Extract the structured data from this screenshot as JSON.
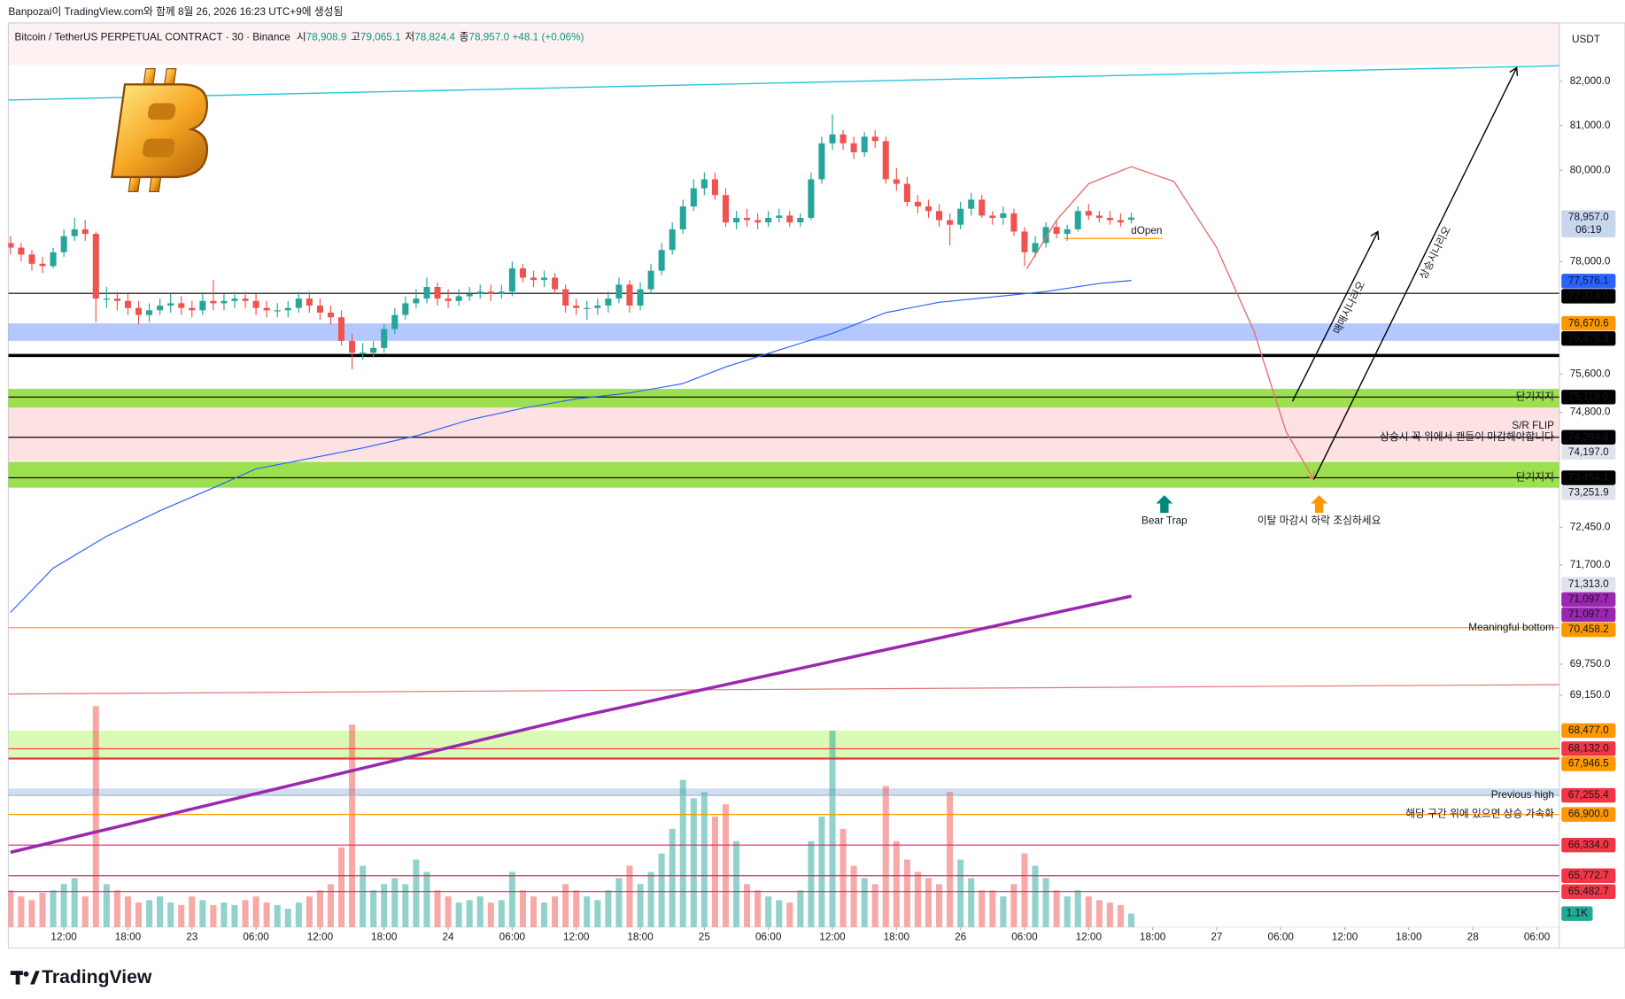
{
  "header": {
    "credit": "Banpozai이 TradingView.com와 함께 8월 26, 2026 16:23 UTC+9에 생성됨",
    "symbol": "Bitcoin / TetherUS PERPETUAL CONTRACT · 30 · Binance",
    "ohlc": [
      {
        "label": "시",
        "value": "78,908.9"
      },
      {
        "label": "고",
        "value": "79,065.1"
      },
      {
        "label": "저",
        "value": "78,824.4"
      },
      {
        "label": "종",
        "value": "78,957.0"
      }
    ],
    "change": "+48.1 (+0.06%)"
  },
  "footer": {
    "brand": "TradingView"
  },
  "chart_data": {
    "type": "candlestick",
    "log_scale": true,
    "currency": "USDT",
    "xlim": [
      6.8,
      152.1
    ],
    "ylim": [
      64840,
      83340
    ],
    "volume_lim": [
      0,
      18500
    ],
    "up_color": "#26a69a",
    "down_color": "#ef5350",
    "volume_up_color": "rgba(38,166,154,0.5)",
    "volume_down_color": "rgba(239,83,80,0.5)",
    "xticks": [
      {
        "value": 12,
        "label": "12:00"
      },
      {
        "value": 18,
        "label": "18:00"
      },
      {
        "value": 24,
        "label": "23"
      },
      {
        "value": 30,
        "label": "06:00"
      },
      {
        "value": 36,
        "label": "12:00"
      },
      {
        "value": 42,
        "label": "18:00"
      },
      {
        "value": 48,
        "label": "24"
      },
      {
        "value": 54,
        "label": "06:00"
      },
      {
        "value": 60,
        "label": "12:00"
      },
      {
        "value": 66,
        "label": "18:00"
      },
      {
        "value": 72,
        "label": "25"
      },
      {
        "value": 78,
        "label": "06:00"
      },
      {
        "value": 84,
        "label": "12:00"
      },
      {
        "value": 90,
        "label": "18:00"
      },
      {
        "value": 96,
        "label": "26"
      },
      {
        "value": 102,
        "label": "06:00"
      },
      {
        "value": 108,
        "label": "12:00"
      },
      {
        "value": 114,
        "label": "18:00"
      },
      {
        "value": 120,
        "label": "27"
      },
      {
        "value": 126,
        "label": "06:00"
      },
      {
        "value": 132,
        "label": "12:00"
      },
      {
        "value": 138,
        "label": "18:00"
      },
      {
        "value": 144,
        "label": "28"
      },
      {
        "value": 150,
        "label": "06:00"
      }
    ],
    "yticks": [
      {
        "value": 82000,
        "label": "82,000.0"
      },
      {
        "value": 81000,
        "label": "81,000.0"
      },
      {
        "value": 80000,
        "label": "80,000.0"
      },
      {
        "value": 78000,
        "label": "78,000.0"
      },
      {
        "value": 75600,
        "label": "75,600.0"
      },
      {
        "value": 74800,
        "label": "74,800.0"
      },
      {
        "value": 72450,
        "label": "72,450.0"
      },
      {
        "value": 71700,
        "label": "71,700.0"
      },
      {
        "value": 69750,
        "label": "69,750.0"
      },
      {
        "value": 69150,
        "label": "69,150.0"
      }
    ],
    "x": [
      7,
      8,
      9,
      10,
      11,
      12,
      13,
      14,
      15,
      16,
      17,
      18,
      19,
      20,
      21,
      22,
      23,
      24,
      25,
      26,
      27,
      28,
      29,
      30,
      31,
      32,
      33,
      34,
      35,
      36,
      37,
      38,
      39,
      40,
      41,
      42,
      43,
      44,
      45,
      46,
      47,
      48,
      49,
      50,
      51,
      52,
      53,
      54,
      55,
      56,
      57,
      58,
      59,
      60,
      61,
      62,
      63,
      64,
      65,
      66,
      67,
      68,
      69,
      70,
      71,
      72,
      73,
      74,
      75,
      76,
      77,
      78,
      79,
      80,
      81,
      82,
      83,
      84,
      85,
      86,
      87,
      88,
      89,
      90,
      91,
      92,
      93,
      94,
      95,
      96,
      97,
      98,
      99,
      100,
      101,
      102,
      103,
      104,
      105,
      106,
      107,
      108,
      109,
      110,
      111,
      112
    ],
    "open": [
      78400,
      78300,
      78150,
      77950,
      77900,
      78200,
      78550,
      78700,
      78600,
      77200,
      77200,
      77150,
      77000,
      76850,
      76950,
      77050,
      77100,
      77000,
      76950,
      77150,
      77100,
      77150,
      77200,
      77150,
      77000,
      76950,
      76950,
      77000,
      77200,
      77050,
      76900,
      76800,
      76300,
      76050,
      76050,
      76150,
      76550,
      76850,
      77100,
      77200,
      77450,
      77200,
      77150,
      77250,
      77300,
      77350,
      77300,
      77350,
      77850,
      77650,
      77600,
      77650,
      77400,
      77050,
      77000,
      77000,
      77050,
      77200,
      77500,
      77050,
      77400,
      77800,
      78250,
      78700,
      79200,
      79600,
      79800,
      79450,
      78850,
      78950,
      78900,
      78850,
      78950,
      79000,
      78850,
      78950,
      79800,
      80600,
      80800,
      80600,
      80400,
      80750,
      80650,
      79800,
      79700,
      79300,
      79200,
      79100,
      78900,
      78800,
      79150,
      79350,
      79000,
      78950,
      79050,
      78650,
      78200,
      78400,
      78750,
      78600,
      78700,
      79100,
      79000,
      78950,
      78900,
      78908.9
    ],
    "high": [
      78550,
      78400,
      78250,
      78100,
      78300,
      78700,
      78950,
      78900,
      78650,
      77450,
      77350,
      77300,
      77150,
      77100,
      77200,
      77300,
      77250,
      77150,
      77300,
      77600,
      77300,
      77350,
      77350,
      77300,
      77150,
      77100,
      77150,
      77350,
      77350,
      77200,
      77050,
      76950,
      76450,
      76250,
      76300,
      76650,
      77000,
      77250,
      77400,
      77650,
      77550,
      77400,
      77400,
      77450,
      77500,
      77500,
      77500,
      78000,
      77950,
      77800,
      77800,
      77750,
      77500,
      77200,
      77150,
      77200,
      77350,
      77650,
      77600,
      77550,
      77950,
      78400,
      78850,
      79350,
      79800,
      79950,
      79950,
      79600,
      79100,
      79150,
      79050,
      79100,
      79150,
      79100,
      79050,
      79950,
      80750,
      81250,
      80900,
      80750,
      80850,
      80900,
      80750,
      80050,
      79850,
      79450,
      79350,
      79250,
      79050,
      79300,
      79500,
      79450,
      79100,
      79200,
      79150,
      78750,
      78550,
      78850,
      78900,
      78800,
      79200,
      79250,
      79100,
      79100,
      79050,
      79065.1
    ],
    "low": [
      78150,
      78000,
      77800,
      77750,
      77850,
      78100,
      78450,
      78450,
      76700,
      77000,
      76950,
      76850,
      76650,
      76700,
      76850,
      76900,
      76850,
      76800,
      76850,
      76950,
      76950,
      77000,
      77000,
      76850,
      76800,
      76800,
      76800,
      76900,
      76900,
      76750,
      76650,
      76200,
      75700,
      75900,
      75950,
      76050,
      76450,
      76750,
      77000,
      77100,
      77050,
      77000,
      77050,
      77150,
      77200,
      77150,
      77200,
      77250,
      77550,
      77450,
      77450,
      77300,
      76900,
      76850,
      76750,
      76850,
      76900,
      77100,
      76900,
      76950,
      77300,
      77700,
      78150,
      78600,
      79100,
      79450,
      79350,
      78750,
      78700,
      78750,
      78700,
      78750,
      78850,
      78750,
      78750,
      78900,
      79700,
      80450,
      80450,
      80250,
      80300,
      80500,
      79700,
      79550,
      79200,
      79050,
      78950,
      78750,
      78350,
      78700,
      79000,
      78950,
      78800,
      78800,
      78550,
      77900,
      78100,
      78300,
      78500,
      78450,
      78650,
      78900,
      78850,
      78800,
      78750,
      78824.4
    ],
    "close": [
      78300,
      78150,
      77950,
      77900,
      78200,
      78550,
      78700,
      78600,
      77200,
      77200,
      77150,
      77000,
      76850,
      76950,
      77050,
      77100,
      77000,
      76950,
      77150,
      77100,
      77150,
      77200,
      77150,
      77000,
      76950,
      76950,
      77000,
      77200,
      77050,
      76900,
      76800,
      76300,
      76050,
      76050,
      76150,
      76550,
      76850,
      77100,
      77200,
      77450,
      77200,
      77150,
      77250,
      77300,
      77350,
      77300,
      77350,
      77850,
      77650,
      77600,
      77650,
      77400,
      77050,
      77000,
      77000,
      77050,
      77200,
      77500,
      77050,
      77400,
      77800,
      78250,
      78700,
      79200,
      79600,
      79800,
      79450,
      78850,
      78950,
      78900,
      78850,
      78950,
      79000,
      78850,
      78950,
      79800,
      80600,
      80800,
      80600,
      80400,
      80750,
      80650,
      79800,
      79700,
      79300,
      79200,
      79100,
      78900,
      78800,
      79150,
      79350,
      79000,
      78950,
      79050,
      78650,
      78200,
      78400,
      78750,
      78600,
      78700,
      79100,
      79000,
      78950,
      78900,
      78850,
      78957
    ],
    "volume": [
      3000,
      2500,
      2200,
      2800,
      3000,
      3500,
      4000,
      2500,
      18000,
      3500,
      3000,
      2500,
      2000,
      2200,
      2500,
      2000,
      1800,
      2500,
      2200,
      1800,
      2000,
      1800,
      2200,
      2500,
      2000,
      1800,
      1500,
      2000,
      2500,
      3000,
      3500,
      6500,
      16500,
      5000,
      3000,
      3500,
      4000,
      3500,
      5500,
      4500,
      3000,
      2500,
      2000,
      2200,
      2500,
      2000,
      2200,
      4500,
      3000,
      2500,
      2000,
      2500,
      3500,
      3000,
      2500,
      2200,
      3000,
      4000,
      5000,
      3500,
      4500,
      6000,
      8000,
      12000,
      10500,
      11000,
      9000,
      10000,
      7000,
      3500,
      3000,
      2500,
      2200,
      2000,
      3000,
      7000,
      9000,
      16000,
      8000,
      5000,
      4000,
      3500,
      11500,
      7000,
      5500,
      4500,
      4000,
      3500,
      11000,
      5500,
      4000,
      3000,
      3000,
      2500,
      3500,
      6000,
      5000,
      4000,
      3000,
      2500,
      3000,
      2500,
      2200,
      2000,
      1800,
      1100
    ],
    "volume_tag": {
      "value": 1100,
      "label": "1.1K",
      "color": "#22ab94"
    },
    "last_tag": {
      "value": 78957,
      "label": "78,957.0",
      "countdown": "06:19",
      "color": "#c8d6ee",
      "text_color": "#131722"
    },
    "zones": [
      {
        "from": 82380,
        "to": 83340,
        "color": "rgba(242,54,69,0.07)"
      },
      {
        "from": 76300,
        "to": 76670.6,
        "color": "rgba(41,98,255,0.35)"
      },
      {
        "from": 74900,
        "to": 75290,
        "color": "rgba(124,214,20,0.75)"
      },
      {
        "from": 73800,
        "to": 74900,
        "color": "rgba(242,54,69,0.15)"
      },
      {
        "from": 73251.9,
        "to": 73780,
        "color": "rgba(124,214,20,0.75)"
      },
      {
        "from": 67946.5,
        "to": 68477,
        "color": "rgba(190,245,120,0.55)"
      },
      {
        "from": 67255.4,
        "to": 67385,
        "color": "rgba(160,190,225,0.5)"
      }
    ],
    "levels": [
      {
        "value": 77314,
        "color": "#000000",
        "width": 1
      },
      {
        "value": 75990,
        "color": "#000000",
        "width": 3
      },
      {
        "value": 75119,
        "color": "#000000",
        "width": 1,
        "labels": [
          "단기지지"
        ]
      },
      {
        "value": 74284.6,
        "color": "#000000",
        "width": 1,
        "labels": [
          "S/R FLIP",
          "상승시 꼭 위에서 캔들이 마감해야합니다"
        ]
      },
      {
        "value": 73454.1,
        "color": "#000000",
        "width": 1,
        "labels": [
          "단기지지"
        ]
      },
      {
        "value": 70458.2,
        "color": "#ff9800",
        "width": 1,
        "labels": [
          "Meaningful bottom"
        ]
      },
      {
        "value": 68132,
        "color": "#f23645",
        "width": 1
      },
      {
        "value": 67946.5,
        "color": "#e53935",
        "width": 2
      },
      {
        "value": 67255.4,
        "color": "#9fb3c8",
        "width": 1,
        "labels": [
          "Previous high"
        ]
      },
      {
        "value": 66900,
        "color": "#ff9800",
        "width": 1,
        "labels": [
          "해당 구간 위에 있으면 상승 가속화"
        ],
        "label_color": "#ff9800"
      },
      {
        "value": 66334,
        "color": "#e91e63",
        "width": 1
      },
      {
        "value": 65772.7,
        "color": "#e91e63",
        "width": 1
      },
      {
        "value": 65482.7,
        "color": "#e91e63",
        "width": 1
      }
    ],
    "segments": [
      {
        "value": 78500,
        "x": [
          105.7,
          114.9
        ],
        "color": "#ff9800",
        "label": "dOpen"
      }
    ],
    "lines": [
      {
        "color": "#26c6da",
        "width": 1.2,
        "x": [
          6.8,
          152.1
        ],
        "y": [
          81575,
          82355
        ]
      },
      {
        "color": "#e57373",
        "width": 1,
        "x": [
          6.8,
          152.1
        ],
        "y": [
          69175,
          69355
        ]
      },
      {
        "color": "#9c27b0",
        "width": 3,
        "x": [
          7,
          60,
          112
        ],
        "y": [
          66200,
          68730,
          71080
        ]
      },
      {
        "color": "#2962ff",
        "width": 1,
        "x": [
          7,
          11,
          16,
          21,
          26,
          30,
          35,
          40,
          45,
          50,
          55,
          60,
          65,
          70,
          74,
          79,
          84,
          89,
          94,
          99,
          104,
          109,
          112
        ],
        "y": [
          70760,
          71635,
          72270,
          72785,
          73250,
          73635,
          73850,
          74065,
          74315,
          74645,
          74885,
          75080,
          75205,
          75400,
          75750,
          76105,
          76460,
          76900,
          77120,
          77235,
          77350,
          77525,
          77590
        ]
      }
    ],
    "arrows": [
      {
        "color": "#e57373",
        "x": [
          102.2,
          105,
          108,
          112,
          116,
          120,
          123.5,
          126.5,
          129.1
        ],
        "y": [
          77840,
          78900,
          79700,
          80080,
          79750,
          78300,
          76500,
          74400,
          73420
        ]
      },
      {
        "color": "#000000",
        "x": [
          127.1,
          135.1
        ],
        "y": [
          75030,
          78650
        ],
        "label": "매매시나리오",
        "label_color": "#ef9a9a"
      },
      {
        "color": "#000000",
        "x": [
          129.1,
          148.1
        ],
        "y": [
          73420,
          82310
        ],
        "label": "상승시나리오",
        "label_color": "#ef9a9a"
      }
    ],
    "markers": [
      {
        "text": "Bear Trap",
        "x": 115.1,
        "value": 73100,
        "color": "#00897b"
      },
      {
        "text": "이탈 마감시 하락 조심하세요",
        "x": 129.6,
        "value": 73100,
        "color": "#ff9800"
      }
    ],
    "price_tags": [
      {
        "value": 77576.1,
        "label": "77,576.1",
        "color": "#2962ff"
      },
      {
        "value": 77314,
        "label": "77,314.0",
        "color": "#000000"
      },
      {
        "value": 76670.6,
        "label": "76,670.6",
        "color": "#ff9800"
      },
      {
        "value": 76476.3,
        "label": "76,476.3",
        "color": "#000000"
      },
      {
        "value": 75119,
        "label": "75,119.0",
        "color": "#000000"
      },
      {
        "value": 74284.6,
        "label": "74,284.6",
        "color": "#000000"
      },
      {
        "value": 74197,
        "label": "74,197.0",
        "color": "#e0e3eb",
        "text_color": "#131722"
      },
      {
        "value": 73454.1,
        "label": "73,454.1",
        "color": "#000000"
      },
      {
        "value": 73251.9,
        "label": "73,251.9",
        "color": "#e0e3eb",
        "text_color": "#131722"
      },
      {
        "value": 71313,
        "label": "71,313.0",
        "color": "#e0e3eb",
        "text_color": "#131722"
      },
      {
        "value": 71097.7,
        "label": "71,097.7",
        "color": "#9c27b0"
      },
      {
        "value": 71097.7,
        "label": "71,097.7",
        "color": "#9c27b0"
      },
      {
        "value": 70458.2,
        "label": "70,458.2",
        "color": "#ff9800"
      },
      {
        "value": 68477,
        "label": "68,477.0",
        "color": "#ff9800"
      },
      {
        "value": 68132,
        "label": "68,132.0",
        "color": "#f23645"
      },
      {
        "value": 67946.5,
        "label": "67,946.5",
        "color": "#ff9800"
      },
      {
        "value": 67255.4,
        "label": "67,255.4",
        "color": "#f23645"
      },
      {
        "value": 66900,
        "label": "66,900.0",
        "color": "#ff9800"
      },
      {
        "value": 66334,
        "label": "66,334.0",
        "color": "#f23645"
      },
      {
        "value": 65772.7,
        "label": "65,772.7",
        "color": "#f23645"
      },
      {
        "value": 65482.7,
        "label": "65,482.7",
        "color": "#f23645"
      }
    ]
  }
}
